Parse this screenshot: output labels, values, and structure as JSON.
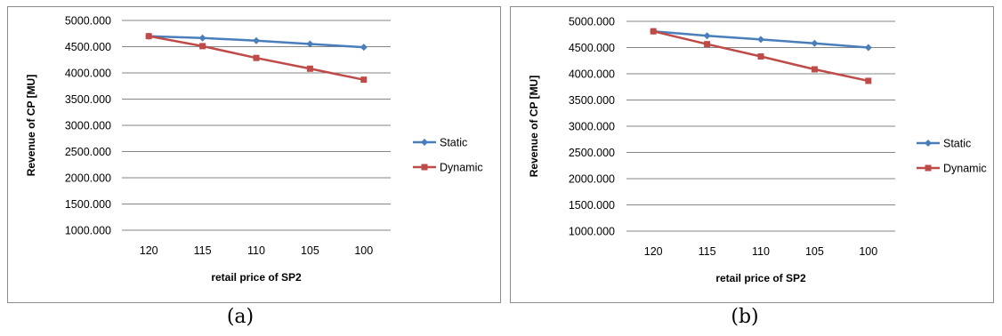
{
  "chart_data": [
    {
      "type": "line",
      "categories": [
        "120",
        "115",
        "110",
        "105",
        "100"
      ],
      "xlabel": "retail price of SP2",
      "ylabel": "Revenue of CP [MU]",
      "ylim": [
        1000,
        5000
      ],
      "yticks": [
        "1000.000",
        "1500.000",
        "2000.000",
        "2500.000",
        "3000.000",
        "3500.000",
        "4000.000",
        "4500.000",
        "5000.000"
      ],
      "grid": true,
      "legend": "right",
      "series": [
        {
          "name": "Static",
          "color": "#4a7ebb",
          "marker": "diamond",
          "values": [
            4700,
            4665,
            4615,
            4550,
            4490
          ]
        },
        {
          "name": "Dynamic",
          "color": "#be4b48",
          "marker": "square",
          "values": [
            4700,
            4510,
            4285,
            4080,
            3870
          ]
        }
      ],
      "caption": "(a)"
    },
    {
      "type": "line",
      "categories": [
        "120",
        "115",
        "110",
        "105",
        "100"
      ],
      "xlabel": "retail price of SP2",
      "ylabel": "Revenue of CP [MU]",
      "ylim": [
        1000,
        5000
      ],
      "yticks": [
        "1000.000",
        "1500.000",
        "2000.000",
        "2500.000",
        "3000.000",
        "3500.000",
        "4000.000",
        "4500.000",
        "5000.000"
      ],
      "grid": true,
      "legend": "right",
      "series": [
        {
          "name": "Static",
          "color": "#4a7ebb",
          "marker": "diamond",
          "values": [
            4810,
            4725,
            4655,
            4580,
            4500
          ]
        },
        {
          "name": "Dynamic",
          "color": "#be4b48",
          "marker": "square",
          "values": [
            4810,
            4565,
            4330,
            4085,
            3865
          ]
        }
      ],
      "caption": "(b)"
    }
  ]
}
